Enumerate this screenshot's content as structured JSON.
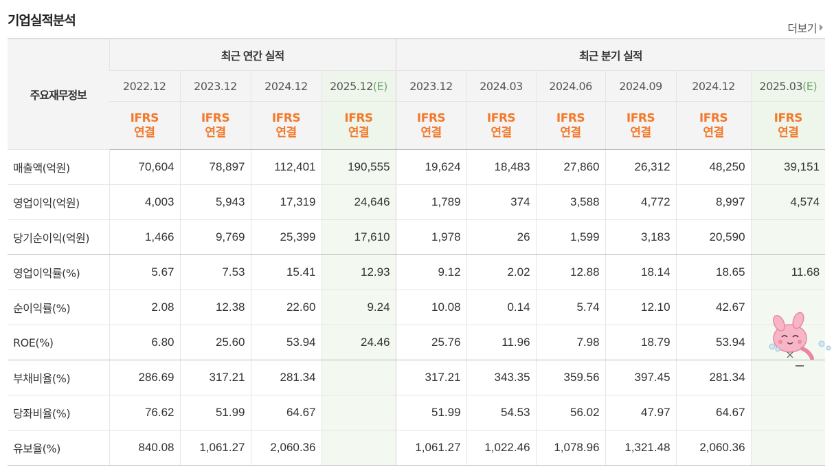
{
  "section_title": "기업실적분석",
  "more_label": "더보기",
  "table": {
    "header_label": "주요재무정보",
    "annual_group": "최근 연간 실적",
    "quarterly_group": "최근 분기 실적",
    "columns": [
      {
        "date": "2022.12",
        "est": "",
        "ifrs_1": "IFRS",
        "ifrs_2": "연결"
      },
      {
        "date": "2023.12",
        "est": "",
        "ifrs_1": "IFRS",
        "ifrs_2": "연결"
      },
      {
        "date": "2024.12",
        "est": "",
        "ifrs_1": "IFRS",
        "ifrs_2": "연결"
      },
      {
        "date": "2025.12",
        "est": "(E)",
        "ifrs_1": "IFRS",
        "ifrs_2": "연결"
      },
      {
        "date": "2023.12",
        "est": "",
        "ifrs_1": "IFRS",
        "ifrs_2": "연결"
      },
      {
        "date": "2024.03",
        "est": "",
        "ifrs_1": "IFRS",
        "ifrs_2": "연결"
      },
      {
        "date": "2024.06",
        "est": "",
        "ifrs_1": "IFRS",
        "ifrs_2": "연결"
      },
      {
        "date": "2024.09",
        "est": "",
        "ifrs_1": "IFRS",
        "ifrs_2": "연결"
      },
      {
        "date": "2024.12",
        "est": "",
        "ifrs_1": "IFRS",
        "ifrs_2": "연결"
      },
      {
        "date": "2025.03",
        "est": "(E)",
        "ifrs_1": "IFRS",
        "ifrs_2": "연결"
      }
    ],
    "rows": [
      {
        "label": "매출액(억원)",
        "values": [
          "70,604",
          "78,897",
          "112,401",
          "190,555",
          "19,624",
          "18,483",
          "27,860",
          "26,312",
          "48,250",
          "39,151"
        ]
      },
      {
        "label": "영업이익(억원)",
        "values": [
          "4,003",
          "5,943",
          "17,319",
          "24,646",
          "1,789",
          "374",
          "3,588",
          "4,772",
          "8,997",
          "4,574"
        ]
      },
      {
        "label": "당기순이익(억원)",
        "values": [
          "1,466",
          "9,769",
          "25,399",
          "17,610",
          "1,978",
          "26",
          "1,599",
          "3,183",
          "20,590",
          ""
        ]
      },
      {
        "label": "영업이익률(%)",
        "values": [
          "5.67",
          "7.53",
          "15.41",
          "12.93",
          "9.12",
          "2.02",
          "12.88",
          "18.14",
          "18.65",
          "11.68"
        ]
      },
      {
        "label": "순이익률(%)",
        "values": [
          "2.08",
          "12.38",
          "22.60",
          "9.24",
          "10.08",
          "0.14",
          "5.74",
          "12.10",
          "42.67",
          ""
        ]
      },
      {
        "label": "ROE(%)",
        "values": [
          "6.80",
          "25.60",
          "53.94",
          "24.46",
          "25.76",
          "11.96",
          "7.98",
          "18.79",
          "53.94",
          ""
        ]
      },
      {
        "label": "부채비율(%)",
        "values": [
          "286.69",
          "317.21",
          "281.34",
          "",
          "317.21",
          "343.35",
          "359.56",
          "397.45",
          "281.34",
          ""
        ]
      },
      {
        "label": "당좌비율(%)",
        "values": [
          "76.62",
          "51.99",
          "64.67",
          "",
          "51.99",
          "54.53",
          "56.02",
          "47.97",
          "64.67",
          ""
        ]
      },
      {
        "label": "유보율(%)",
        "values": [
          "840.08",
          "1,061.27",
          "2,060.36",
          "",
          "1,061.27",
          "1,022.46",
          "1,078.96",
          "1,321.48",
          "2,060.36",
          ""
        ]
      }
    ]
  },
  "colors": {
    "ifrs_text": "#f27a2c",
    "estimate_text": "#6ea86e",
    "forecast_bg": "#eef6ec",
    "header_bg": "#f4f4f4"
  },
  "icons": {
    "more": "triangle-right-icon",
    "mascot": "pink-rabbit-mascot"
  }
}
